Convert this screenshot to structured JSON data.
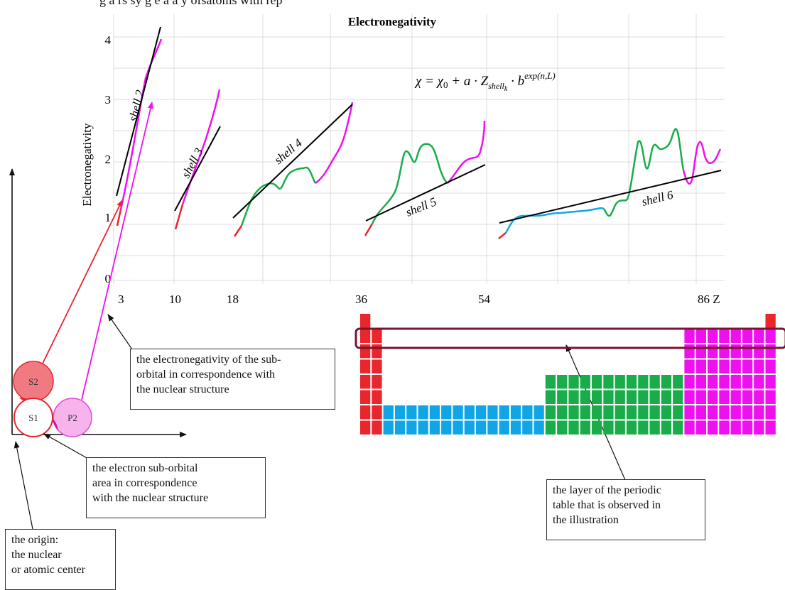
{
  "title_fragment": "g a rs sy g e a a y ofsatoms with rep",
  "chart": {
    "title": "Electronegativity",
    "ylabel": "Electronegativity",
    "formula": "χ = χ₀ + a · Z_shell_k · b^exp(n,L)",
    "y_ticks": [
      "0",
      "1",
      "2",
      "3",
      "4"
    ],
    "x_ticks": [
      "3",
      "10",
      "18",
      "36",
      "54",
      "86 Z"
    ]
  },
  "shell_labels": [
    "shell 2",
    "shell 3",
    "shell 4",
    "shell 5",
    "shell 6"
  ],
  "orbitals": [
    "S2",
    "S1",
    "P2"
  ],
  "callouts": {
    "electronegativity": "the electronegativity of the sub-\norbital in correspondence with\nthe nuclear structure",
    "suborbital": "the electron sub-orbital\narea in correspondence\nwith the nuclear structure",
    "origin": "the origin:\nthe nuclear\nor atomic center",
    "layer": "the layer of the periodic\ntable that is observed in\nthe illustration"
  },
  "colors": {
    "s_block": "#e8262c",
    "d_block": "#12a5e6",
    "p_block_green": "#1aac4a",
    "p_block_magenta": "#ef10ef",
    "highlight_frame": "#7a1430",
    "trend_line": "#000000"
  }
}
